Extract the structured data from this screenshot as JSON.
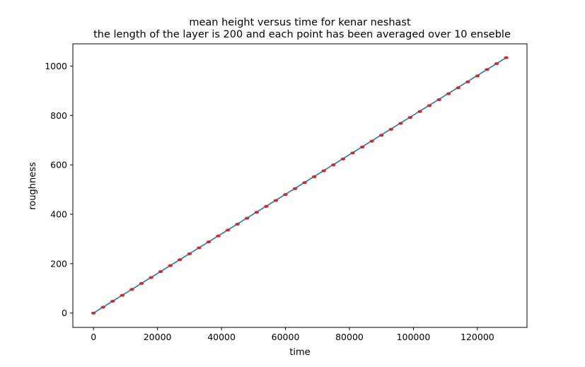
{
  "chart_data": {
    "type": "line",
    "title": "mean height versus time for kenar neshast",
    "subtitle": "the length of the layer is 200 and each point has been averaged over 10 enseble",
    "xlabel": "time",
    "ylabel": "roughness",
    "xlim": [
      -6450,
      135500
    ],
    "ylim": [
      -58,
      1090
    ],
    "x_ticks": [
      0,
      20000,
      40000,
      60000,
      80000,
      100000,
      120000
    ],
    "x_tick_labels": [
      "0",
      "20000",
      "40000",
      "60000",
      "80000",
      "100000",
      "120000"
    ],
    "y_ticks": [
      0,
      200,
      400,
      600,
      800,
      1000
    ],
    "y_tick_labels": [
      "0",
      "200",
      "400",
      "600",
      "800",
      "1000"
    ],
    "grid": false,
    "legend": "none",
    "colors": {
      "line": "#1f77b4",
      "points": "#d62728"
    },
    "series": [
      {
        "style": "line",
        "x": [
          0,
          129000
        ],
        "y": [
          0,
          1034
        ]
      },
      {
        "style": "points",
        "x": [
          0,
          3000,
          6000,
          9000,
          12000,
          15000,
          18000,
          21000,
          24000,
          27000,
          30000,
          33000,
          36000,
          39000,
          42000,
          45000,
          48000,
          51000,
          54000,
          57000,
          60000,
          63000,
          66000,
          69000,
          72000,
          75000,
          78000,
          81000,
          84000,
          87000,
          90000,
          93000,
          96000,
          99000,
          102000,
          105000,
          108000,
          111000,
          114000,
          117000,
          120000,
          123000,
          126000,
          129000
        ],
        "y": [
          0,
          24,
          48,
          72,
          96,
          120,
          144,
          168,
          192,
          216,
          240,
          264,
          288,
          312,
          336,
          360,
          384,
          408,
          432,
          456,
          480,
          504,
          528,
          552,
          576,
          600,
          624,
          648,
          672,
          696,
          720,
          744,
          768,
          792,
          816,
          840,
          864,
          888,
          912,
          936,
          960,
          986,
          1010,
          1034
        ]
      }
    ]
  }
}
